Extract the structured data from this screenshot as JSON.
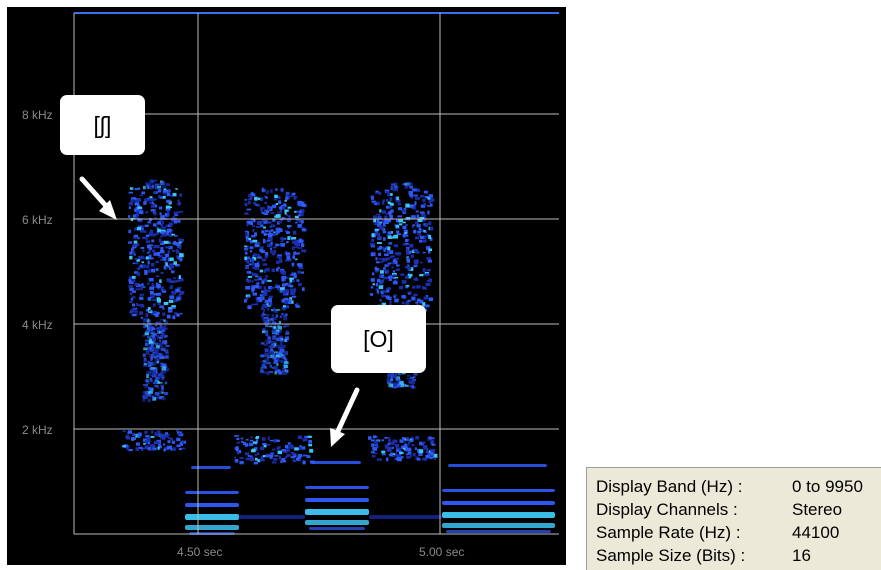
{
  "spectrogram": {
    "y_ticks": [
      "8 kHz",
      "6 kHz",
      "4 kHz",
      "2 kHz"
    ],
    "x_ticks": [
      "4.50 sec",
      "5.00 sec"
    ],
    "colors": {
      "background": "#000000",
      "grid": "#bdbdbd",
      "top_line": "#3a6ff0",
      "energy_dark": "#1a2fb0",
      "energy_mid": "#2f5cff",
      "energy_bright": "#3fd0ff"
    }
  },
  "annotations": {
    "sh_label": "[ʃ]",
    "o_label": "[O]"
  },
  "info_panel": {
    "rows": [
      {
        "label": "Display Band (Hz) :",
        "value": "0 to 9950"
      },
      {
        "label": "Display Channels :",
        "value": "Stereo"
      },
      {
        "label": "Sample Rate (Hz) :",
        "value": "44100"
      },
      {
        "label": "Sample Size (Bits) :",
        "value": "16"
      }
    ]
  }
}
